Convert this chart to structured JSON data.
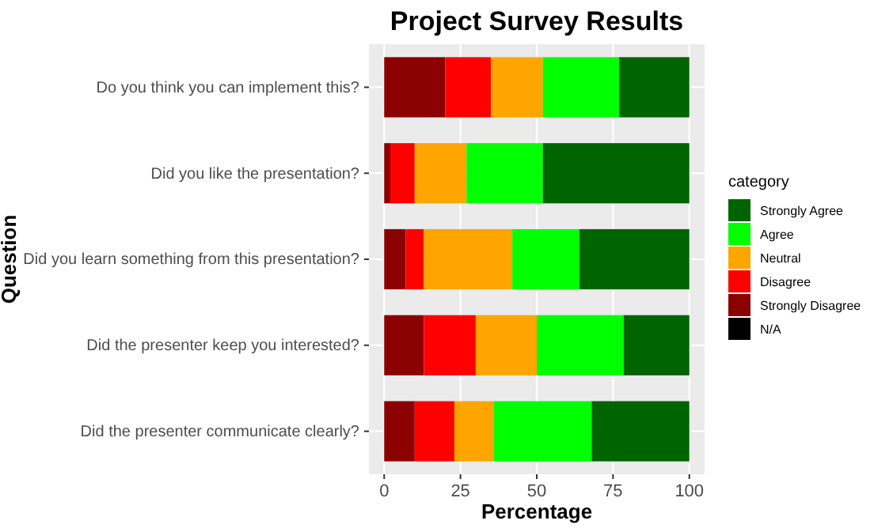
{
  "chart_data": {
    "type": "bar",
    "orientation": "horizontal",
    "stacked": true,
    "title": "Project Survey Results",
    "xlabel": "Percentage",
    "ylabel": "Question",
    "legend_title": "category",
    "legend": "right",
    "grid": true,
    "categories": [
      "Do you think you can implement this?",
      "Did you like the presentation?",
      "Did you learn something from this presentation?",
      "Did the presenter keep you interested?",
      "Did the presenter communicate clearly?"
    ],
    "xlim": [
      -5,
      105
    ],
    "xticks": [
      0,
      25,
      50,
      75,
      100
    ],
    "series": [
      {
        "name": "N/A",
        "color": "#000000",
        "values": [
          0,
          0,
          0,
          0,
          0
        ]
      },
      {
        "name": "Strongly Disagree",
        "color": "#8b0000",
        "values": [
          20,
          2,
          7,
          13,
          10
        ]
      },
      {
        "name": "Disagree",
        "color": "#ff0000",
        "values": [
          15,
          8,
          6,
          17,
          13
        ]
      },
      {
        "name": "Neutral",
        "color": "#ffa500",
        "values": [
          17,
          17,
          29,
          20,
          13
        ]
      },
      {
        "name": "Agree",
        "color": "#00ff00",
        "values": [
          25,
          25,
          22,
          28.5,
          32
        ]
      },
      {
        "name": "Strongly Agree",
        "color": "#006400",
        "values": [
          23,
          48,
          36,
          21.5,
          32
        ]
      }
    ]
  }
}
